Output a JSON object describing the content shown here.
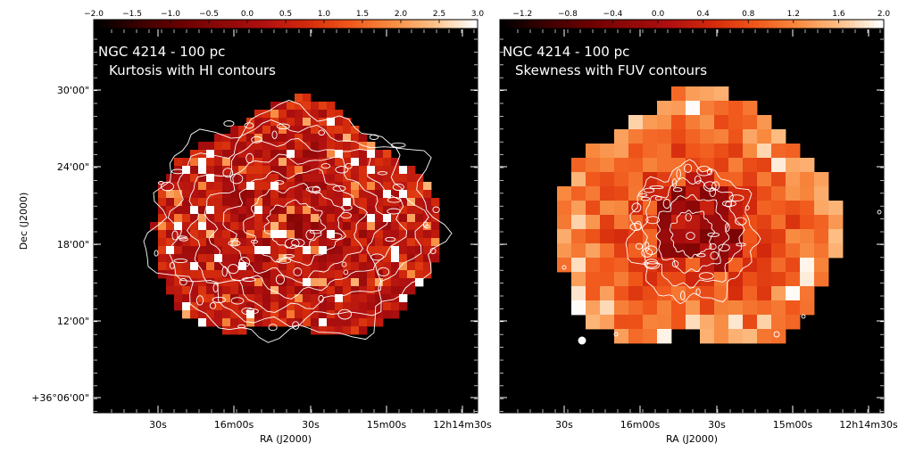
{
  "chart_data": [
    {
      "type": "heatmap",
      "object": "NGC 4214 - 100 pc",
      "subtitle": "Kurtosis with HI contours",
      "colorbar": {
        "min": -2.0,
        "max": 3.0,
        "ticks": [
          "−2.0",
          "−1.5",
          "−1.0",
          "−0.5",
          "0.0",
          "0.5",
          "1.0",
          "1.5",
          "2.0",
          "2.5",
          "3.0"
        ]
      },
      "xlabel": "RA (J2000)",
      "ylabel": "Dec (J2000)",
      "xticks": [
        "30s",
        "16m00s",
        "30s",
        "15m00s",
        "12h14m30s"
      ],
      "yticks": [
        "30'00\"",
        "24'00\"",
        "18'00\"",
        "12'00\"",
        "+36°06'00\""
      ],
      "contours": "HI"
    },
    {
      "type": "heatmap",
      "object": "NGC 4214 - 100 pc",
      "subtitle": "Skewness with FUV contours",
      "colorbar": {
        "min": -1.4,
        "max": 2.0,
        "ticks": [
          "−1.2",
          "−0.8",
          "−0.4",
          "0.0",
          "0.4",
          "0.8",
          "1.2",
          "1.6",
          "2.0"
        ]
      },
      "xlabel": "RA (J2000)",
      "xticks": [
        "30s",
        "16m00s",
        "30s",
        "15m00s",
        "12h14m30s"
      ],
      "contours": "FUV"
    }
  ],
  "colors": {
    "background": "#000000",
    "cmap": [
      "#000000",
      "#3a0000",
      "#6a0000",
      "#8e0808",
      "#b01010",
      "#d42a0c",
      "#f0561a",
      "#f88a40",
      "#fdbf85",
      "#ffffff"
    ]
  }
}
